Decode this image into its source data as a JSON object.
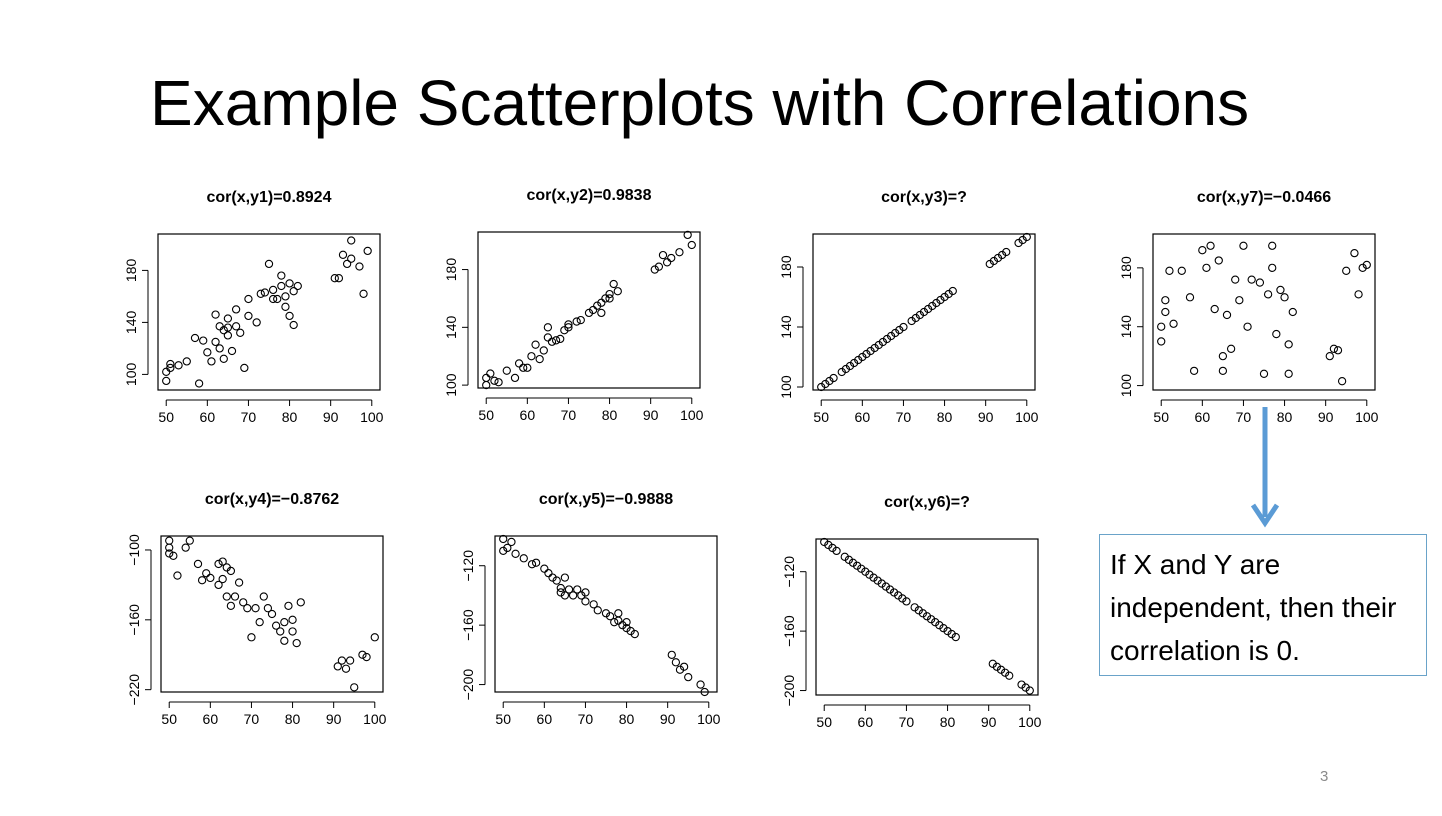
{
  "slide": {
    "title": "Example Scatterplots with Correlations",
    "page_number": "3",
    "note": "If X and Y are independent, then their correlation is 0.",
    "arrow_color": "#5b9bd5"
  },
  "chart_data": [
    {
      "type": "scatter",
      "id": "y1",
      "title": "cor(x,y1)=0.8924",
      "xlim": [
        48,
        102
      ],
      "ylim": [
        88,
        208
      ],
      "xticks": [
        50,
        60,
        70,
        80,
        90,
        100
      ],
      "yticks": [
        100,
        140,
        180
      ],
      "x": [
        50,
        50,
        51,
        51,
        53,
        55,
        57,
        58,
        59,
        60,
        61,
        62,
        62,
        63,
        63,
        64,
        64,
        65,
        65,
        65,
        66,
        67,
        67,
        68,
        69,
        70,
        70,
        72,
        73,
        74,
        75,
        76,
        76,
        77,
        78,
        78,
        79,
        79,
        80,
        80,
        81,
        81,
        82,
        91,
        92,
        93,
        94,
        95,
        95,
        97,
        98,
        99
      ],
      "y": [
        95,
        102,
        108,
        105,
        107,
        110,
        128,
        93,
        126,
        117,
        110,
        146,
        125,
        137,
        120,
        112,
        134,
        130,
        136,
        143,
        118,
        150,
        137,
        132,
        105,
        145,
        158,
        140,
        162,
        163,
        185,
        158,
        165,
        158,
        176,
        168,
        160,
        152,
        170,
        145,
        138,
        164,
        168,
        174,
        174,
        192,
        185,
        203,
        189,
        183,
        162,
        195
      ]
    },
    {
      "type": "scatter",
      "id": "y2",
      "title": "cor(x,y2)=0.9838",
      "xlim": [
        48,
        102
      ],
      "ylim": [
        98,
        206
      ],
      "xticks": [
        50,
        60,
        70,
        80,
        90,
        100
      ],
      "yticks": [
        100,
        140,
        180
      ],
      "x": [
        50,
        50,
        51,
        52,
        53,
        55,
        57,
        58,
        59,
        60,
        61,
        62,
        63,
        64,
        65,
        65,
        66,
        67,
        68,
        69,
        70,
        70,
        72,
        73,
        75,
        76,
        77,
        78,
        78,
        79,
        80,
        80,
        81,
        82,
        91,
        92,
        93,
        94,
        95,
        97,
        99,
        100
      ],
      "y": [
        100,
        105,
        108,
        103,
        102,
        110,
        105,
        115,
        112,
        112,
        120,
        128,
        118,
        124,
        133,
        140,
        130,
        131,
        132,
        138,
        142,
        140,
        144,
        145,
        150,
        152,
        155,
        150,
        157,
        160,
        160,
        163,
        170,
        165,
        180,
        182,
        190,
        185,
        188,
        192,
        204,
        197
      ]
    },
    {
      "type": "scatter",
      "id": "y3",
      "title": "cor(x,y3)=?",
      "xlim": [
        48,
        102
      ],
      "ylim": [
        98,
        202
      ],
      "xticks": [
        50,
        60,
        70,
        80,
        90,
        100
      ],
      "yticks": [
        100,
        140,
        180
      ],
      "x": [
        50,
        51,
        52,
        53,
        55,
        56,
        57,
        58,
        59,
        60,
        61,
        62,
        63,
        64,
        65,
        66,
        67,
        68,
        69,
        70,
        72,
        73,
        74,
        75,
        76,
        77,
        78,
        79,
        80,
        81,
        82,
        91,
        92,
        93,
        94,
        95,
        98,
        99,
        100
      ],
      "y": [
        100,
        102,
        104,
        106,
        110,
        112,
        114,
        116,
        118,
        120,
        122,
        124,
        126,
        128,
        130,
        132,
        134,
        136,
        138,
        140,
        144,
        146,
        148,
        150,
        152,
        154,
        156,
        158,
        160,
        162,
        164,
        182,
        184,
        186,
        188,
        190,
        196,
        198,
        200
      ]
    },
    {
      "type": "scatter",
      "id": "y7",
      "title": "cor(x,y7)=−0.0466",
      "xlim": [
        48,
        102
      ],
      "ylim": [
        97,
        203
      ],
      "xticks": [
        50,
        60,
        70,
        80,
        90,
        100
      ],
      "yticks": [
        100,
        140,
        180
      ],
      "x": [
        50,
        50,
        51,
        51,
        52,
        53,
        55,
        57,
        58,
        60,
        61,
        62,
        63,
        64,
        65,
        65,
        66,
        67,
        68,
        69,
        70,
        71,
        72,
        74,
        75,
        76,
        77,
        77,
        78,
        79,
        80,
        81,
        81,
        82,
        91,
        92,
        93,
        94,
        95,
        97,
        98,
        99,
        100
      ],
      "y": [
        130,
        140,
        158,
        150,
        178,
        142,
        178,
        160,
        110,
        192,
        180,
        195,
        152,
        185,
        120,
        110,
        148,
        125,
        172,
        158,
        195,
        140,
        172,
        170,
        108,
        162,
        195,
        180,
        135,
        165,
        160,
        108,
        128,
        150,
        120,
        125,
        124,
        103,
        178,
        190,
        162,
        180,
        182
      ]
    },
    {
      "type": "scatter",
      "id": "y4",
      "title": "cor(x,y4)=−0.8762",
      "xlim": [
        48,
        102
      ],
      "ylim": [
        -222,
        -88
      ],
      "xticks": [
        50,
        60,
        70,
        80,
        90,
        100
      ],
      "yticks": [
        -100,
        -160,
        -220
      ],
      "x": [
        50,
        50,
        50,
        51,
        52,
        54,
        55,
        57,
        58,
        59,
        60,
        62,
        62,
        63,
        63,
        64,
        64,
        65,
        65,
        66,
        67,
        68,
        69,
        70,
        71,
        72,
        73,
        74,
        75,
        76,
        77,
        78,
        78,
        79,
        80,
        80,
        81,
        82,
        91,
        92,
        93,
        94,
        95,
        97,
        98,
        100
      ],
      "y": [
        -92,
        -98,
        -103,
        -105,
        -122,
        -98,
        -92,
        -112,
        -126,
        -120,
        -124,
        -112,
        -130,
        -110,
        -125,
        -115,
        -140,
        -118,
        -148,
        -140,
        -128,
        -145,
        -150,
        -175,
        -150,
        -162,
        -140,
        -150,
        -155,
        -165,
        -170,
        -162,
        -178,
        -148,
        -160,
        -170,
        -180,
        -145,
        -200,
        -195,
        -202,
        -195,
        -218,
        -190,
        -192,
        -175
      ]
    },
    {
      "type": "scatter",
      "id": "y5",
      "title": "cor(x,y5)=−0.9888",
      "xlim": [
        48,
        102
      ],
      "ylim": [
        -205,
        -100
      ],
      "xticks": [
        50,
        60,
        70,
        80,
        90,
        100
      ],
      "yticks": [
        -120,
        -160,
        -200
      ],
      "x": [
        50,
        50,
        51,
        52,
        53,
        55,
        57,
        58,
        60,
        61,
        62,
        63,
        64,
        64,
        65,
        65,
        66,
        67,
        68,
        69,
        70,
        70,
        72,
        73,
        75,
        76,
        77,
        78,
        78,
        79,
        80,
        80,
        81,
        82,
        91,
        92,
        93,
        94,
        95,
        98,
        99
      ],
      "y": [
        -102,
        -110,
        -108,
        -104,
        -112,
        -115,
        -119,
        -118,
        -122,
        -125,
        -128,
        -130,
        -135,
        -138,
        -128,
        -140,
        -136,
        -140,
        -136,
        -140,
        -144,
        -138,
        -146,
        -150,
        -152,
        -154,
        -158,
        -157,
        -152,
        -160,
        -158,
        -162,
        -164,
        -166,
        -180,
        -185,
        -190,
        -188,
        -195,
        -200,
        -205
      ]
    },
    {
      "type": "scatter",
      "id": "y6",
      "title": "cor(x,y6)=?",
      "xlim": [
        48,
        102
      ],
      "ylim": [
        -203,
        -98
      ],
      "xticks": [
        50,
        60,
        70,
        80,
        90,
        100
      ],
      "yticks": [
        -120,
        -160,
        -200
      ],
      "x": [
        50,
        51,
        52,
        53,
        55,
        56,
        57,
        58,
        59,
        60,
        61,
        62,
        63,
        64,
        65,
        66,
        67,
        68,
        69,
        70,
        72,
        73,
        74,
        75,
        76,
        77,
        78,
        79,
        80,
        81,
        82,
        91,
        92,
        93,
        94,
        95,
        98,
        99,
        100
      ],
      "y": [
        -100,
        -102,
        -104,
        -106,
        -110,
        -112,
        -114,
        -116,
        -118,
        -120,
        -122,
        -124,
        -126,
        -128,
        -130,
        -132,
        -134,
        -136,
        -138,
        -140,
        -144,
        -146,
        -148,
        -150,
        -152,
        -154,
        -156,
        -158,
        -160,
        -162,
        -164,
        -182,
        -184,
        -186,
        -188,
        -190,
        -196,
        -198,
        -200
      ]
    }
  ]
}
